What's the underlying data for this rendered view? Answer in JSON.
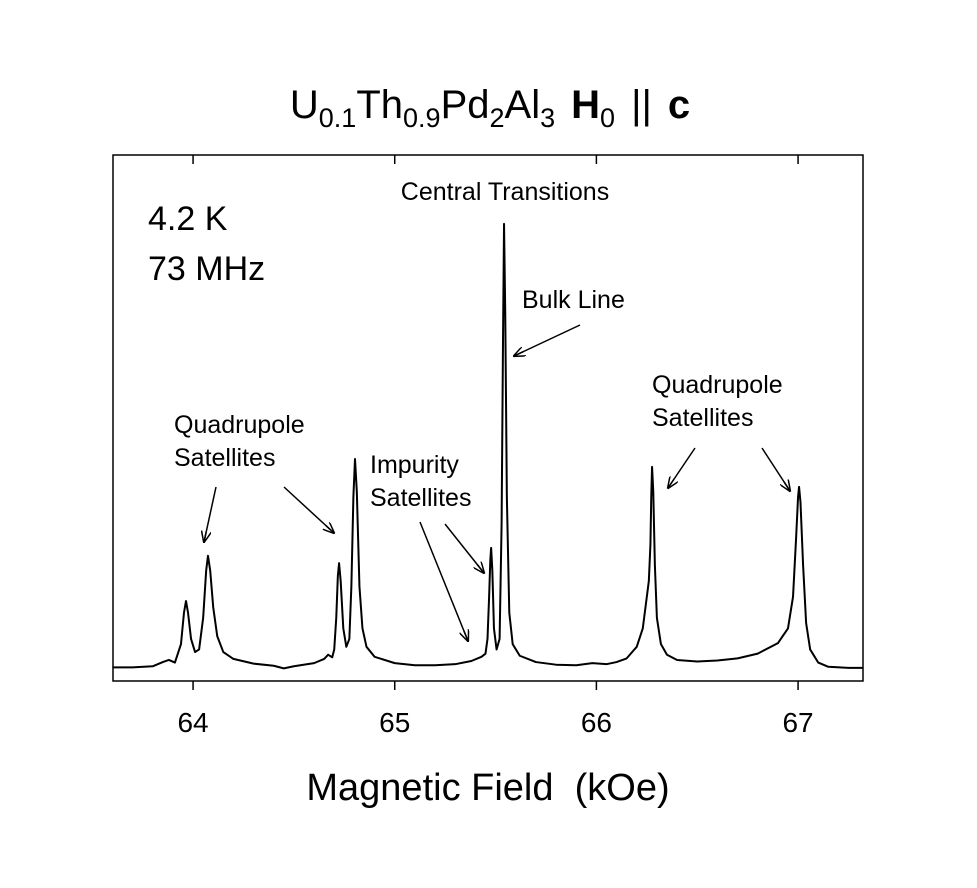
{
  "chart_data": {
    "type": "line",
    "title_runs": [
      {
        "text": "U"
      },
      {
        "text": "0.1",
        "sub": true
      },
      {
        "text": "Th"
      },
      {
        "text": "0.9",
        "sub": true
      },
      {
        "text": "Pd"
      },
      {
        "text": "2",
        "sub": true
      },
      {
        "text": "Al"
      },
      {
        "text": "3",
        "sub": true
      },
      {
        "text": "H",
        "bold": true
      },
      {
        "text": "0",
        "sub": true
      },
      {
        "text": "||"
      },
      {
        "text": "c",
        "bold": true
      }
    ],
    "x_label": "Magnetic Field  (kOe)",
    "conditions": [
      "4.2 K",
      "73 MHz"
    ],
    "annotations": [
      {
        "text": [
          "Central Transitions"
        ]
      },
      {
        "text": [
          "Bulk Line"
        ]
      },
      {
        "text": [
          "Quadrupole",
          "Satellites"
        ]
      },
      {
        "text": [
          "Impurity",
          "Satellites"
        ]
      },
      {
        "text": [
          "Quadrupole",
          "Satellites"
        ]
      }
    ],
    "color": "#000000",
    "xlim": [
      63.603,
      67.322
    ],
    "xticks": [
      64,
      65,
      66,
      67
    ],
    "ylim": [
      0,
      100
    ],
    "x": [
      63.6,
      63.7,
      63.8,
      63.85,
      63.88,
      63.91,
      63.94,
      63.955,
      63.965,
      63.975,
      63.99,
      64.01,
      64.03,
      64.05,
      64.065,
      64.074,
      64.085,
      64.1,
      64.12,
      64.15,
      64.2,
      64.3,
      64.4,
      64.45,
      64.5,
      64.6,
      64.65,
      64.67,
      64.69,
      64.7,
      64.71,
      64.718,
      64.724,
      64.732,
      64.745,
      64.76,
      64.775,
      64.785,
      64.795,
      64.803,
      64.812,
      64.825,
      64.84,
      64.86,
      64.9,
      65.0,
      65.1,
      65.2,
      65.3,
      65.38,
      65.43,
      65.45,
      65.46,
      65.468,
      65.474,
      65.478,
      65.484,
      65.492,
      65.505,
      65.52,
      65.53,
      65.537,
      65.542,
      65.548,
      65.556,
      65.568,
      65.585,
      65.62,
      65.7,
      65.8,
      65.9,
      65.98,
      66.05,
      66.1,
      66.15,
      66.2,
      66.23,
      66.25,
      66.26,
      66.268,
      66.272,
      66.276,
      66.282,
      66.29,
      66.3,
      66.32,
      66.35,
      66.4,
      66.5,
      66.6,
      66.7,
      66.8,
      66.9,
      66.95,
      66.975,
      66.99,
      67.0,
      67.005,
      67.012,
      67.025,
      67.04,
      67.06,
      67.1,
      67.15,
      67.25,
      67.32
    ],
    "values": [
      2.6,
      2.6,
      2.8,
      3.6,
      4.0,
      3.5,
      7,
      13,
      15.2,
      13,
      8,
      5.5,
      6,
      12,
      21,
      23.8,
      21,
      14,
      8.5,
      5.5,
      4.2,
      3.3,
      2.9,
      2.4,
      2.8,
      3.4,
      4.2,
      5.0,
      4.5,
      6,
      12,
      20,
      22.4,
      19,
      10,
      6.5,
      8,
      18,
      35,
      42.2,
      36,
      18,
      10,
      6.5,
      4.6,
      3.4,
      3.0,
      3.0,
      3.2,
      3.8,
      4.6,
      5.2,
      8,
      16,
      23,
      25.3,
      21,
      10,
      6,
      8,
      30,
      65,
      86.9,
      70,
      35,
      13,
      7,
      4.8,
      3.6,
      3.1,
      3.0,
      3.4,
      3.2,
      3.6,
      4.3,
      6.5,
      10,
      16,
      19,
      26,
      35,
      40.7,
      36,
      22,
      12,
      7,
      5,
      4.0,
      3.7,
      3.9,
      4.3,
      5.2,
      7.2,
      10,
      16,
      27,
      35,
      36.9,
      34,
      22,
      11,
      6,
      3.5,
      2.7,
      2.5,
      2.5
    ]
  }
}
